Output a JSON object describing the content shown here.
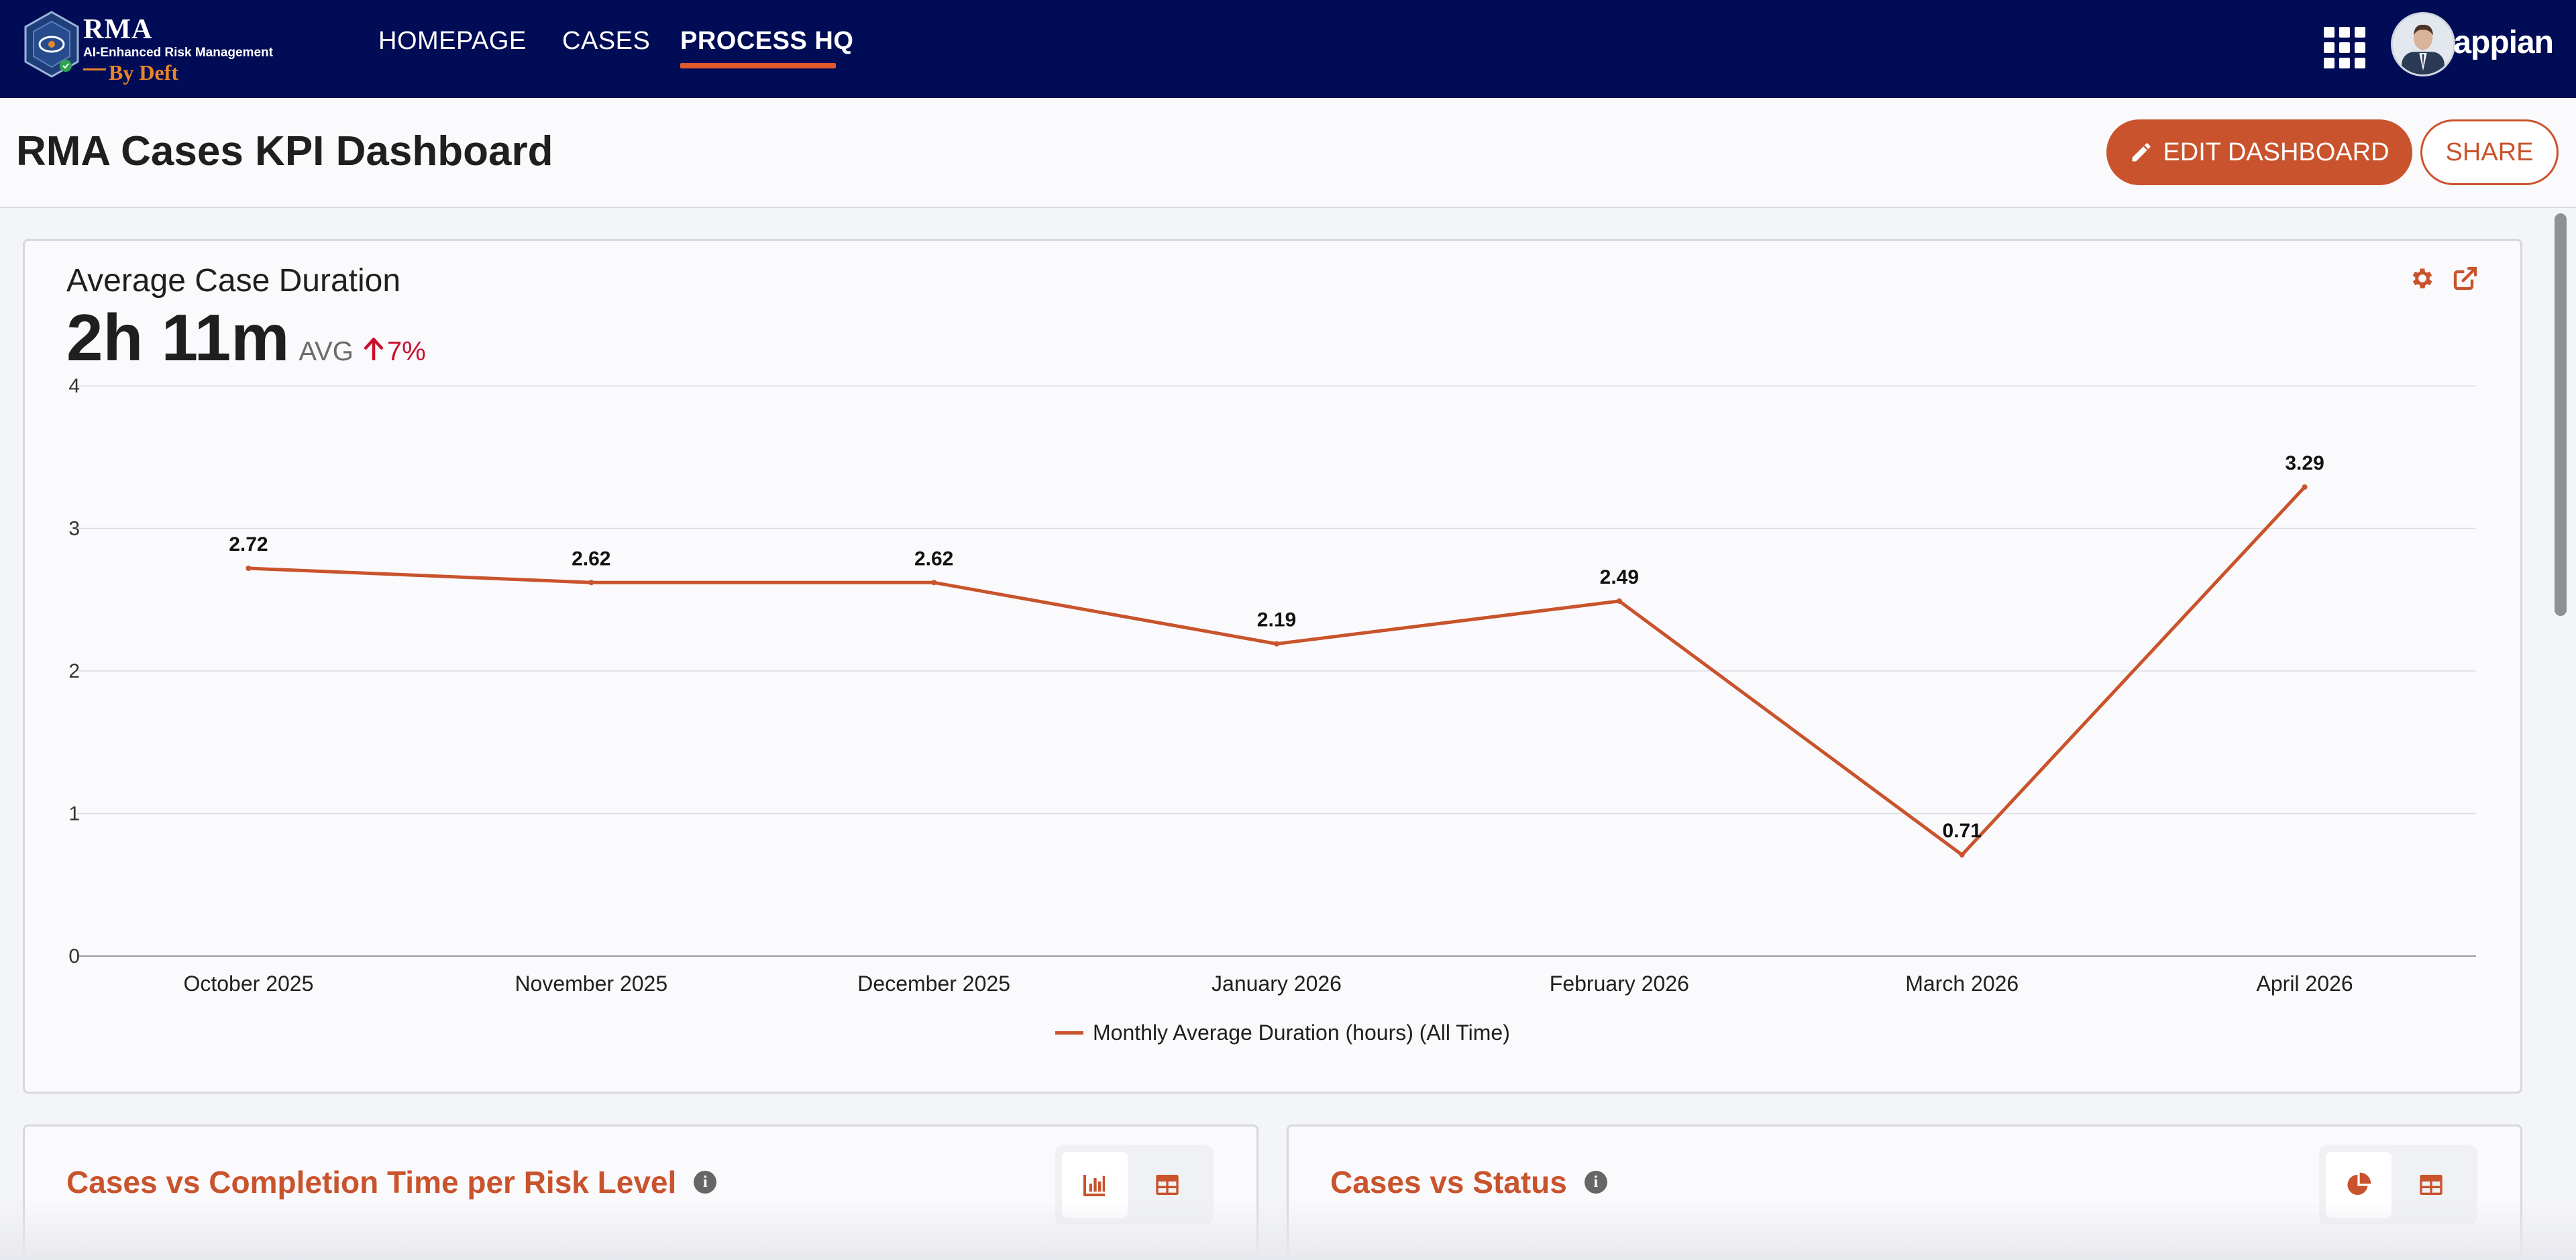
{
  "nav": {
    "logo_title": "RMA",
    "logo_subtitle": "AI-Enhanced Risk Management",
    "logo_by": "By Deft",
    "links": [
      {
        "label": "HOMEPAGE",
        "active": false
      },
      {
        "label": "CASES",
        "active": false
      },
      {
        "label": "PROCESS HQ",
        "active": true
      }
    ],
    "brand": "appian"
  },
  "header": {
    "title": "RMA Cases KPI Dashboard",
    "edit_label": "EDIT DASHBOARD",
    "share_label": "SHARE"
  },
  "kpi_card": {
    "title": "Average Case Duration",
    "value": "2h 11m",
    "unit_label": "AVG",
    "change": "7%",
    "change_direction": "up"
  },
  "chart_data": {
    "type": "line",
    "x": [
      "October 2025",
      "November 2025",
      "December 2025",
      "January 2026",
      "February 2026",
      "March 2026",
      "April 2026"
    ],
    "series": [
      {
        "name": "Monthly Average Duration (hours) (All Time)",
        "values": [
          2.72,
          2.62,
          2.62,
          2.19,
          2.49,
          0.71,
          3.29
        ],
        "color": "#c9532c"
      }
    ],
    "data_labels": [
      "2.72",
      "2.62",
      "2.62",
      "2.19",
      "2.49",
      "0.71",
      "3.29"
    ],
    "yticks": [
      "0",
      "1",
      "2",
      "3",
      "4"
    ],
    "ylim": [
      0,
      4
    ],
    "grid": true,
    "legend": "bottom-center"
  },
  "cards": [
    {
      "title": "Cases vs Completion Time per Risk Level",
      "views": [
        "bar-chart-icon",
        "table-icon"
      ],
      "active_view": "bar-chart-icon"
    },
    {
      "title": "Cases vs Status",
      "views": [
        "pie-chart-icon",
        "table-icon"
      ],
      "active_view": "pie-chart-icon"
    }
  ],
  "colors": {
    "nav_bg": "#000c55",
    "accent": "#c9532c",
    "underline": "#e05a2b",
    "negative": "#c8102e"
  }
}
